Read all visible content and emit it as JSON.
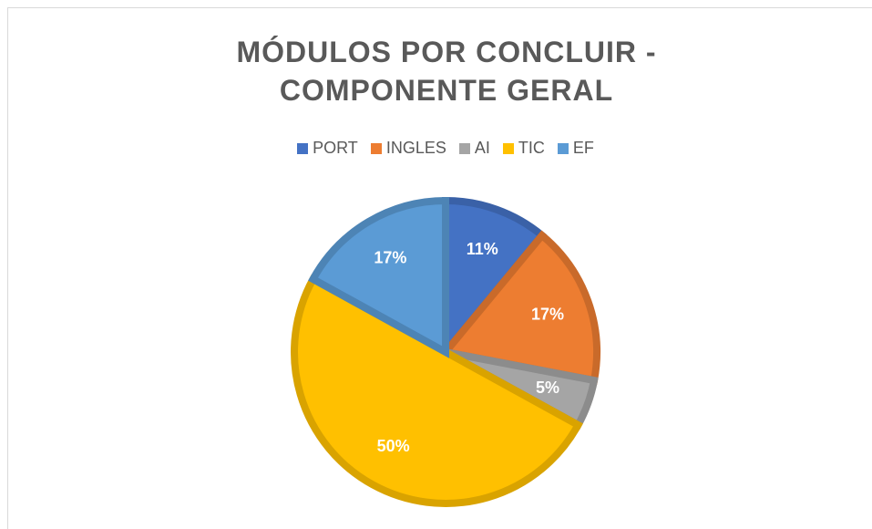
{
  "chart_data": {
    "type": "pie",
    "title": "MÓDULOS POR CONCLUIR - COMPONENTE GERAL",
    "categories": [
      "PORT",
      "INGLES",
      "AI",
      "TIC",
      "EF"
    ],
    "values": [
      11,
      17,
      5,
      50,
      17
    ],
    "value_labels": [
      "11%",
      "17%",
      "5%",
      "50%",
      "17%"
    ],
    "colors": [
      "#4472c4",
      "#ed7d31",
      "#a5a5a5",
      "#ffc000",
      "#5b9bd5"
    ],
    "legend": "top"
  }
}
